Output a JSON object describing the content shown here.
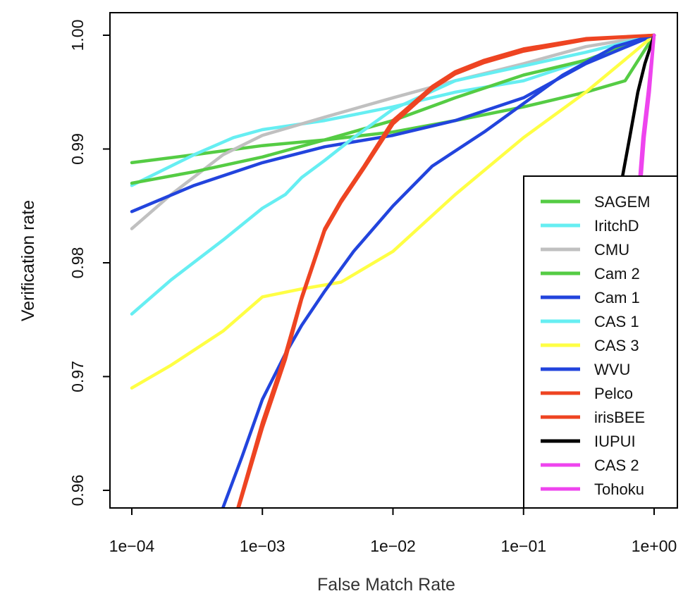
{
  "chart_data": {
    "type": "line",
    "title": "",
    "xlabel": "False Match Rate",
    "ylabel": "Verification rate",
    "x_scale": "log10",
    "xlim": [
      0.0001,
      1
    ],
    "ylim": [
      0.9585,
      1.0
    ],
    "x_ticks": [
      {
        "value": 0.0001,
        "label": "1e−04"
      },
      {
        "value": 0.001,
        "label": "1e−03"
      },
      {
        "value": 0.01,
        "label": "1e−02"
      },
      {
        "value": 0.1,
        "label": "1e−01"
      },
      {
        "value": 1,
        "label": "1e+00"
      }
    ],
    "y_ticks": [
      {
        "value": 0.96,
        "label": "0.96"
      },
      {
        "value": 0.97,
        "label": "0.97"
      },
      {
        "value": 0.98,
        "label": "0.98"
      },
      {
        "value": 0.99,
        "label": "0.99"
      },
      {
        "value": 1.0,
        "label": "1.00"
      }
    ],
    "grid": false,
    "legend_position": "bottom-right",
    "series": [
      {
        "name": "SAGEM",
        "color": "#55cc44",
        "x": [
          0.0001,
          0.0003,
          0.001,
          0.003,
          0.01,
          0.03,
          0.1,
          0.3,
          0.6,
          1
        ],
        "y": [
          0.9888,
          0.9895,
          0.9903,
          0.9908,
          0.9915,
          0.9925,
          0.9937,
          0.995,
          0.996,
          1.0
        ]
      },
      {
        "name": "IritchD",
        "color": "#66eef2",
        "x": [
          0.0001,
          0.0003,
          0.0006,
          0.001,
          0.003,
          0.01,
          0.03,
          0.1,
          0.3,
          1
        ],
        "y": [
          0.9868,
          0.9895,
          0.991,
          0.9917,
          0.9925,
          0.9937,
          0.995,
          0.996,
          0.9978,
          1.0
        ]
      },
      {
        "name": "CMU",
        "color": "#c0c0c0",
        "x": [
          0.0001,
          0.0002,
          0.0005,
          0.001,
          0.003,
          0.01,
          0.03,
          0.1,
          0.3,
          1
        ],
        "y": [
          0.983,
          0.986,
          0.9895,
          0.9912,
          0.9928,
          0.9945,
          0.996,
          0.9975,
          0.999,
          1.0
        ]
      },
      {
        "name": "Cam 2",
        "color": "#55cc44",
        "x": [
          0.0001,
          0.0003,
          0.001,
          0.003,
          0.01,
          0.03,
          0.1,
          0.3,
          1
        ],
        "y": [
          0.987,
          0.988,
          0.9893,
          0.9908,
          0.9925,
          0.9945,
          0.9965,
          0.9978,
          1.0
        ]
      },
      {
        "name": "Cam 1",
        "color": "#2244dd",
        "x": [
          0.0001,
          0.0003,
          0.001,
          0.003,
          0.01,
          0.03,
          0.1,
          0.3,
          1
        ],
        "y": [
          0.9845,
          0.9868,
          0.9888,
          0.9902,
          0.9912,
          0.9925,
          0.9945,
          0.9975,
          1.0
        ]
      },
      {
        "name": "CAS 1",
        "color": "#66eef2",
        "x": [
          0.0001,
          0.0002,
          0.0005,
          0.001,
          0.0015,
          0.002,
          0.003,
          0.005,
          0.01,
          0.03,
          0.1,
          0.3,
          1
        ],
        "y": [
          0.9755,
          0.9785,
          0.982,
          0.9848,
          0.986,
          0.9875,
          0.989,
          0.991,
          0.9935,
          0.996,
          0.9973,
          0.9985,
          1.0
        ]
      },
      {
        "name": "CAS 3",
        "color": "#ffff44",
        "x": [
          0.0001,
          0.0002,
          0.0005,
          0.001,
          0.002,
          0.004,
          0.01,
          0.03,
          0.1,
          0.3,
          0.7,
          1
        ],
        "y": [
          0.969,
          0.971,
          0.974,
          0.977,
          0.9777,
          0.9783,
          0.981,
          0.986,
          0.991,
          0.995,
          0.9985,
          1.0
        ]
      },
      {
        "name": "WVU",
        "color": "#2244dd",
        "x": [
          0.0005,
          0.0007,
          0.001,
          0.0015,
          0.002,
          0.003,
          0.005,
          0.01,
          0.02,
          0.05,
          0.1,
          0.2,
          0.5,
          1
        ],
        "y": [
          0.9585,
          0.963,
          0.968,
          0.972,
          0.9745,
          0.9775,
          0.981,
          0.985,
          0.9885,
          0.9915,
          0.994,
          0.9965,
          0.999,
          1.0
        ]
      },
      {
        "name": "Pelco",
        "color": "#ee4422",
        "x": [
          0.00065,
          0.001,
          0.0015,
          0.002,
          0.003,
          0.004,
          0.006,
          0.01,
          0.02,
          0.03,
          0.05,
          0.1,
          0.3,
          1
        ],
        "y": [
          0.9585,
          0.966,
          0.972,
          0.977,
          0.983,
          0.9855,
          0.9885,
          0.9925,
          0.9955,
          0.9968,
          0.9978,
          0.9988,
          0.9997,
          1.0
        ]
      },
      {
        "name": "irisBEE",
        "color": "#ee4422",
        "x": [
          0.00066,
          0.001,
          0.0015,
          0.002,
          0.003,
          0.004,
          0.006,
          0.01,
          0.02,
          0.03,
          0.05,
          0.1,
          0.3,
          1
        ],
        "y": [
          0.9585,
          0.9655,
          0.9715,
          0.9768,
          0.9828,
          0.9853,
          0.9883,
          0.9922,
          0.9953,
          0.9966,
          0.9976,
          0.9986,
          0.9996,
          1.0
        ]
      },
      {
        "name": "IUPUI",
        "color": "#000000",
        "x": [
          0.56,
          0.65,
          0.75,
          0.85,
          1
        ],
        "y": [
          0.987,
          0.991,
          0.995,
          0.9975,
          1.0
        ]
      },
      {
        "name": "CAS 2",
        "color": "#ee44ee",
        "x": [
          0.77,
          0.82,
          0.9,
          1
        ],
        "y": [
          0.987,
          0.991,
          0.995,
          1.0
        ]
      },
      {
        "name": "Tohoku",
        "color": "#ee44ee",
        "x": [
          0.79,
          0.84,
          0.92,
          1
        ],
        "y": [
          0.987,
          0.991,
          0.995,
          1.0
        ]
      }
    ]
  }
}
